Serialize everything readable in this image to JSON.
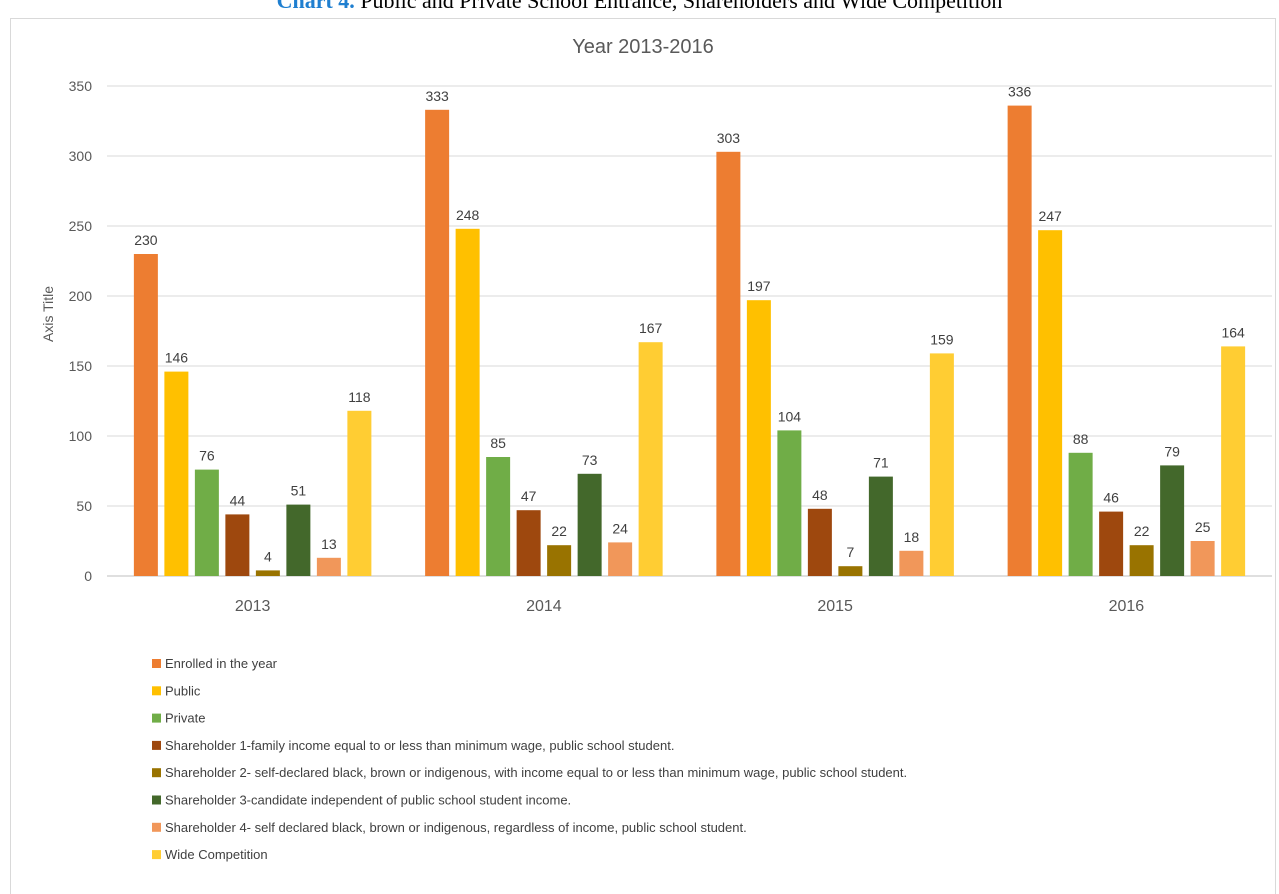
{
  "caption": {
    "lead": "Chart 4.",
    "text": "Public and Private School Entrance, Shareholders and Wide Competition"
  },
  "chart_data": {
    "type": "bar",
    "title": "Year 2013-2016",
    "xlabel": "",
    "ylabel": "Axis Title",
    "ylim": [
      0,
      350
    ],
    "yticks": [
      0,
      50,
      100,
      150,
      200,
      250,
      300,
      350
    ],
    "grid": true,
    "legend_position": "bottom",
    "categories": [
      "2013",
      "2014",
      "2015",
      "2016"
    ],
    "series": [
      {
        "name": "Enrolled in the year",
        "color": "#ed7d31",
        "values": [
          230,
          333,
          303,
          336
        ]
      },
      {
        "name": "Public",
        "color": "#ffc000",
        "values": [
          146,
          248,
          197,
          247
        ]
      },
      {
        "name": "Private",
        "color": "#70ad47",
        "values": [
          76,
          85,
          104,
          88
        ]
      },
      {
        "name": "Shareholder 1-family income equal to or less than minimum wage, public school student.",
        "color": "#9e480e",
        "values": [
          44,
          47,
          48,
          46
        ]
      },
      {
        "name": "Shareholder 2- self-declared black, brown or indigenous, with income equal to or less than minimum wage, public school student.",
        "color": "#997300",
        "values": [
          4,
          22,
          7,
          22
        ]
      },
      {
        "name": "Shareholder 3-candidate independent of public school student income.",
        "color": "#43682b",
        "values": [
          51,
          73,
          71,
          79
        ]
      },
      {
        "name": "Shareholder 4- self declared black, brown or indigenous, regardless of income, public school student.",
        "color": "#f1975a",
        "values": [
          13,
          24,
          18,
          25
        ]
      },
      {
        "name": "Wide Competition",
        "color": "#ffcd33",
        "values": [
          118,
          167,
          159,
          164
        ]
      }
    ]
  }
}
